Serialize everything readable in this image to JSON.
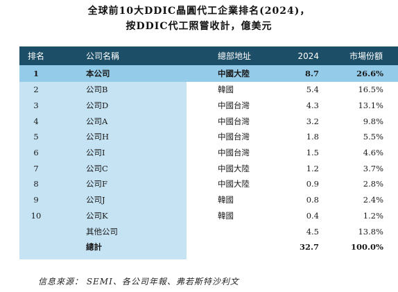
{
  "title": {
    "line1": "全球前10大DDIC晶圓代工企業排名(2024)，",
    "line2": "按DDIC代工照嘗收計，億美元"
  },
  "table": {
    "headers": {
      "rank": "排名",
      "name": "公司名稱",
      "hq": "總部地址",
      "year": "2024",
      "share": "市場份額"
    },
    "rows": [
      {
        "rank": "1",
        "name": "本公司",
        "hq": "中國大陸",
        "value": "8.7",
        "share": "26.6%"
      },
      {
        "rank": "2",
        "name": "公司B",
        "hq": "韓國",
        "value": "5.4",
        "share": "16.5%"
      },
      {
        "rank": "3",
        "name": "公司D",
        "hq": "中國台灣",
        "value": "4.3",
        "share": "13.1%"
      },
      {
        "rank": "4",
        "name": "公司A",
        "hq": "中國台灣",
        "value": "3.2",
        "share": "9.8%"
      },
      {
        "rank": "5",
        "name": "公司H",
        "hq": "中國台灣",
        "value": "1.8",
        "share": "5.5%"
      },
      {
        "rank": "6",
        "name": "公司I",
        "hq": "中國台灣",
        "value": "1.5",
        "share": "4.6%"
      },
      {
        "rank": "7",
        "name": "公司C",
        "hq": "中國大陸",
        "value": "1.2",
        "share": "3.7%"
      },
      {
        "rank": "8",
        "name": "公司F",
        "hq": "中國大陸",
        "value": "0.9",
        "share": "2.8%"
      },
      {
        "rank": "9",
        "name": "公司J",
        "hq": "韓國",
        "value": "0.8",
        "share": "2.4%"
      },
      {
        "rank": "10",
        "name": "公司K",
        "hq": "韓國",
        "value": "0.4",
        "share": "1.2%"
      },
      {
        "rank": "",
        "name": "其他公司",
        "hq": "",
        "value": "4.5",
        "share": "13.8%"
      },
      {
        "rank": "",
        "name": "總計",
        "hq": "",
        "value": "32.7",
        "share": "100.0%"
      }
    ]
  },
  "source": "信息來源： SEMI、各公司年報、弗若斯特沙利文",
  "colors": {
    "header_bg": "#1d4e67",
    "highlight_row": "#94cbe9",
    "left_panel": "#c6e3f4"
  }
}
